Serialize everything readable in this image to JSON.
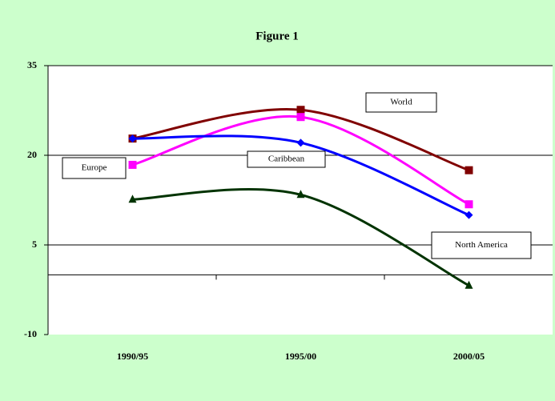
{
  "chart_data": {
    "type": "line",
    "title": "Figure 1",
    "categories": [
      "1990/95",
      "1995/00",
      "2000/05"
    ],
    "series": [
      {
        "name": "World",
        "color": "#800000",
        "marker": "square",
        "values": [
          22.8,
          27.6,
          17.5
        ]
      },
      {
        "name": "Europe",
        "color": "#ff00ff",
        "marker": "square",
        "values": [
          18.4,
          26.4,
          11.8
        ]
      },
      {
        "name": "Caribbean",
        "color": "#0000ff",
        "marker": "diamond",
        "values": [
          22.8,
          22.1,
          10
        ]
      },
      {
        "name": "North America",
        "color": "#003300",
        "marker": "triangle",
        "values": [
          12.6,
          13.4,
          -1.8
        ]
      }
    ],
    "ylim": [
      -10,
      35
    ],
    "yticks": [
      -10,
      5,
      20,
      35
    ],
    "grid": true
  }
}
